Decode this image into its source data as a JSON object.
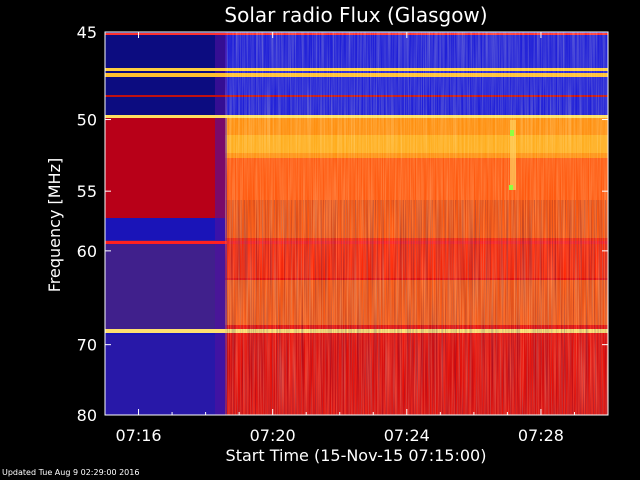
{
  "chart_data": {
    "type": "heatmap",
    "title": "Solar radio Flux (Glasgow)",
    "xlabel": "Start Time (15-Nov-15 07:15:00)",
    "ylabel": "Frequency [MHz]",
    "x_ticks": [
      "07:16",
      "07:20",
      "07:24",
      "07:28"
    ],
    "x_tick_minutes": [
      1,
      5,
      9,
      13
    ],
    "xlim_minutes": [
      0,
      15
    ],
    "y_ticks": [
      45,
      50,
      55,
      60,
      70,
      80
    ],
    "ylim": [
      45,
      80
    ],
    "y_scale": "reciprocal",
    "grid": false,
    "legend": "none",
    "colormap": [
      "#000018",
      "#1010c0",
      "#3a20c8",
      "#800050",
      "#c00010",
      "#ff2000",
      "#ff7000",
      "#ffb000",
      "#ffff60"
    ],
    "sudden_onset_minute": 3.5
  },
  "footer": {
    "updated": "Updated Tue Aug  9 02:29:00 2016"
  }
}
